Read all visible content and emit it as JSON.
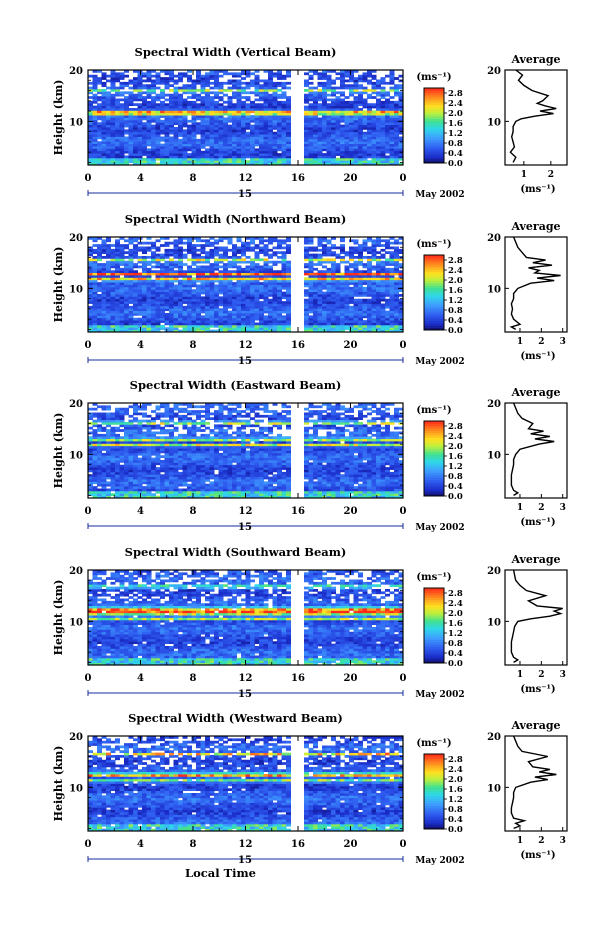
{
  "chart_data": [
    {
      "type": "heatmap",
      "title": "Spectral Width (Vertical Beam)",
      "ylabel": "Height (km)",
      "ylim": [
        1.5,
        20
      ],
      "xlim": [
        0,
        24
      ],
      "x_ticks": [
        "0",
        "4",
        "8",
        "12",
        "16",
        "20",
        "0"
      ],
      "y_ticks": [
        "10",
        "20"
      ],
      "date_day": "15",
      "date_month_year": "May 2002",
      "colorbar": {
        "unit": "(ms⁻¹)",
        "ticks": [
          "2.8",
          "2.4",
          "2.0",
          "1.6",
          "1.2",
          "0.8",
          "0.4",
          "0.0"
        ],
        "range": [
          0,
          3.0
        ]
      },
      "data_gap": [
        15.6,
        16.3
      ],
      "layers": [
        {
          "height": 16.0,
          "width": 0.4,
          "value": 1.9
        },
        {
          "height": 12.0,
          "width": 0.3,
          "value": 2.7
        },
        {
          "height": 11.5,
          "width": 0.3,
          "value": 2.2
        }
      ],
      "average_profile": {
        "title": "Average",
        "xlabel": "(ms⁻¹)",
        "x_ticks": [
          "1",
          "2"
        ],
        "xlim": [
          0.3,
          2.6
        ],
        "y_ticks": [
          "10",
          "20"
        ],
        "height": [
          2,
          3,
          4,
          5,
          6,
          7,
          8,
          9,
          10,
          10.5,
          11,
          11.5,
          12,
          12.5,
          13,
          13.5,
          14,
          15,
          16,
          17,
          18,
          19,
          20
        ],
        "value": [
          0.6,
          0.7,
          0.5,
          0.65,
          0.6,
          0.55,
          0.6,
          0.6,
          0.7,
          0.9,
          1.4,
          2.1,
          1.6,
          2.2,
          1.8,
          1.5,
          1.7,
          1.9,
          1.3,
          1.0,
          0.8,
          0.95,
          0.7
        ]
      }
    },
    {
      "type": "heatmap",
      "title": "Spectral Width (Northward Beam)",
      "ylabel": "Height (km)",
      "ylim": [
        1.5,
        20
      ],
      "xlim": [
        0,
        24
      ],
      "x_ticks": [
        "0",
        "4",
        "8",
        "12",
        "16",
        "20",
        "0"
      ],
      "y_ticks": [
        "10",
        "20"
      ],
      "date_day": "15",
      "date_month_year": "May 2002",
      "colorbar": {
        "unit": "(ms⁻¹)",
        "ticks": [
          "2.8",
          "2.4",
          "2.0",
          "1.6",
          "1.2",
          "0.8",
          "0.4",
          "0.0"
        ],
        "range": [
          0,
          3.0
        ]
      },
      "data_gap": [
        15.6,
        16.3
      ],
      "layers": [
        {
          "height": 15.5,
          "width": 0.35,
          "value": 2.3
        },
        {
          "height": 12.8,
          "width": 0.3,
          "value": 2.9
        },
        {
          "height": 11.8,
          "width": 0.35,
          "value": 2.6
        }
      ],
      "average_profile": {
        "title": "Average",
        "xlabel": "(ms⁻¹)",
        "x_ticks": [
          "1",
          "2",
          "3"
        ],
        "xlim": [
          0.3,
          3.2
        ],
        "y_ticks": [
          "10",
          "20"
        ],
        "height": [
          2,
          2.5,
          3,
          4,
          5,
          6,
          7,
          8,
          9,
          10,
          11,
          11.5,
          12,
          12.5,
          13,
          13.5,
          14,
          14.5,
          15,
          15.5,
          16,
          17,
          18,
          19,
          20
        ],
        "value": [
          0.8,
          0.6,
          1.0,
          0.7,
          0.6,
          0.65,
          0.6,
          0.7,
          0.7,
          0.9,
          1.5,
          2.6,
          1.8,
          2.9,
          1.7,
          1.9,
          1.4,
          2.5,
          1.6,
          2.2,
          1.3,
          1.1,
          0.9,
          0.8,
          0.7
        ]
      }
    },
    {
      "type": "heatmap",
      "title": "Spectral Width (Eastward Beam)",
      "ylabel": "Height (km)",
      "ylim": [
        1.5,
        20
      ],
      "xlim": [
        0,
        24
      ],
      "x_ticks": [
        "0",
        "4",
        "8",
        "12",
        "16",
        "20",
        "0"
      ],
      "y_ticks": [
        "10",
        "20"
      ],
      "date_day": "15",
      "date_month_year": "May 2002",
      "colorbar": {
        "unit": "(ms⁻¹)",
        "ticks": [
          "2.8",
          "2.4",
          "2.0",
          "1.6",
          "1.2",
          "0.8",
          "0.4",
          "0.0"
        ],
        "range": [
          0,
          3.0
        ]
      },
      "data_gap": [
        15.6,
        16.3
      ],
      "layers": [
        {
          "height": 16.2,
          "width": 0.35,
          "value": 2.3
        },
        {
          "height": 13.0,
          "width": 0.3,
          "value": 2.6
        },
        {
          "height": 11.8,
          "width": 0.3,
          "value": 2.4
        }
      ],
      "average_profile": {
        "title": "Average",
        "xlabel": "(ms⁻¹)",
        "x_ticks": [
          "1",
          "2",
          "3"
        ],
        "xlim": [
          0.3,
          3.2
        ],
        "y_ticks": [
          "10",
          "20"
        ],
        "height": [
          2,
          2.5,
          3,
          4,
          5,
          6,
          7,
          8,
          9,
          10,
          11,
          12,
          12.5,
          13,
          13.5,
          14,
          14.5,
          15,
          16,
          17,
          18,
          19,
          20
        ],
        "value": [
          0.7,
          0.9,
          0.7,
          0.6,
          0.6,
          0.6,
          0.65,
          0.7,
          0.7,
          0.8,
          1.0,
          1.9,
          2.6,
          1.7,
          2.4,
          1.5,
          2.1,
          1.4,
          1.6,
          1.1,
          0.9,
          0.8,
          0.7
        ]
      }
    },
    {
      "type": "heatmap",
      "title": "Spectral Width (Southward Beam)",
      "ylabel": "Height (km)",
      "ylim": [
        1.5,
        20
      ],
      "xlim": [
        0,
        24
      ],
      "x_ticks": [
        "0",
        "4",
        "8",
        "12",
        "16",
        "20",
        "0"
      ],
      "y_ticks": [
        "10",
        "20"
      ],
      "date_day": "15",
      "date_month_year": "May 2002",
      "colorbar": {
        "unit": "(ms⁻¹)",
        "ticks": [
          "2.8",
          "2.4",
          "2.0",
          "1.6",
          "1.2",
          "0.8",
          "0.4",
          "0.0"
        ],
        "range": [
          0,
          3.0
        ]
      },
      "data_gap": [
        15.6,
        16.3
      ],
      "layers": [
        {
          "height": 16.8,
          "width": 0.35,
          "value": 2.0
        },
        {
          "height": 12.0,
          "width": 0.9,
          "value": 3.0
        },
        {
          "height": 10.5,
          "width": 0.3,
          "value": 1.9
        }
      ],
      "average_profile": {
        "title": "Average",
        "xlabel": "(ms⁻¹)",
        "x_ticks": [
          "1",
          "2",
          "3"
        ],
        "xlim": [
          0.3,
          3.2
        ],
        "y_ticks": [
          "10",
          "20"
        ],
        "height": [
          2,
          2.5,
          3,
          4,
          5,
          6,
          7,
          8,
          9,
          10,
          10.5,
          11,
          11.5,
          12,
          12.5,
          13,
          14,
          15,
          16,
          17,
          18,
          19,
          20
        ],
        "value": [
          0.7,
          0.9,
          0.7,
          0.6,
          0.6,
          0.6,
          0.65,
          0.7,
          0.75,
          0.9,
          1.5,
          2.4,
          2.9,
          2.6,
          3.0,
          1.8,
          1.4,
          2.2,
          1.3,
          1.0,
          0.8,
          0.75,
          0.7
        ]
      }
    },
    {
      "type": "heatmap",
      "title": "Spectral Width (Westward Beam)",
      "ylabel": "Height (km)",
      "xlabel": "Local Time",
      "ylim": [
        1.5,
        20
      ],
      "xlim": [
        0,
        24
      ],
      "x_ticks": [
        "0",
        "4",
        "8",
        "12",
        "16",
        "20",
        "0"
      ],
      "y_ticks": [
        "10",
        "20"
      ],
      "date_day": "15",
      "date_month_year": "May 2002",
      "colorbar": {
        "unit": "(ms⁻¹)",
        "ticks": [
          "2.8",
          "2.4",
          "2.0",
          "1.6",
          "1.2",
          "0.8",
          "0.4",
          "0.0"
        ],
        "range": [
          0,
          3.0
        ]
      },
      "data_gap": [
        15.6,
        16.3
      ],
      "layers": [
        {
          "height": 16.5,
          "width": 0.35,
          "value": 2.4
        },
        {
          "height": 12.5,
          "width": 0.4,
          "value": 2.8
        },
        {
          "height": 11.3,
          "width": 0.3,
          "value": 2.3
        }
      ],
      "average_profile": {
        "title": "Average",
        "xlabel": "(ms⁻¹)",
        "x_ticks": [
          "1",
          "2",
          "3"
        ],
        "xlim": [
          0.3,
          3.2
        ],
        "y_ticks": [
          "10",
          "20"
        ],
        "height": [
          2,
          2.5,
          3,
          3.5,
          4,
          5,
          6,
          7,
          8,
          9,
          10,
          11,
          11.5,
          12,
          12.5,
          13,
          13.5,
          14,
          15,
          16,
          17,
          18,
          19,
          20
        ],
        "value": [
          0.7,
          1.0,
          0.8,
          1.2,
          0.7,
          0.6,
          0.6,
          0.65,
          0.7,
          0.7,
          0.8,
          1.5,
          2.3,
          1.7,
          2.7,
          1.9,
          2.4,
          1.6,
          1.4,
          2.3,
          1.1,
          0.9,
          0.8,
          0.7
        ]
      }
    }
  ]
}
